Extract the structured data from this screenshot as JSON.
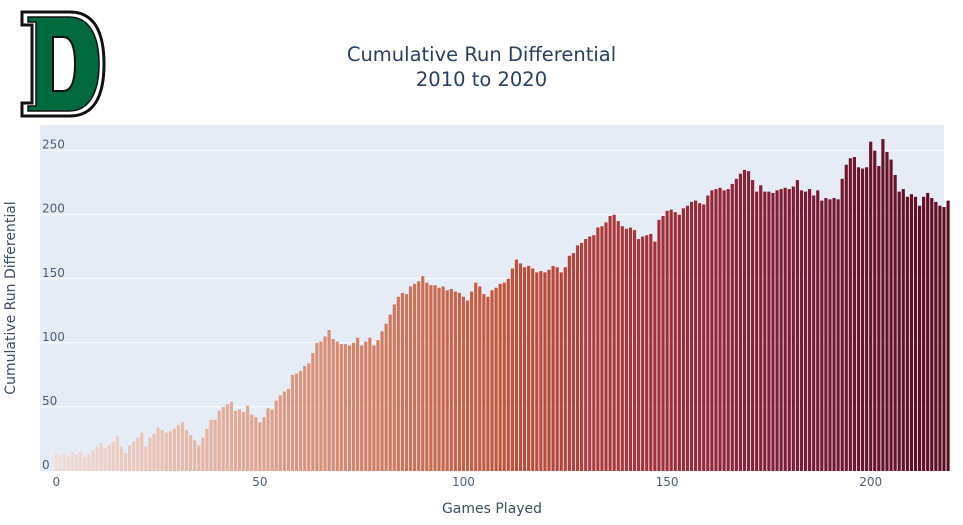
{
  "logo": {
    "letter": "D",
    "fill": "#00693e",
    "stroke": "#111111"
  },
  "chart_data": {
    "type": "bar",
    "title": "Cumulative Run Differential",
    "subtitle": "2010 to 2020",
    "xlabel": "Games Played",
    "ylabel": "Cumulative Run Differential",
    "xlim": [
      -4,
      218
    ],
    "ylim": [
      0,
      270
    ],
    "xticks": [
      0,
      50,
      100,
      150,
      200
    ],
    "yticks": [
      0,
      50,
      100,
      150,
      200,
      250
    ],
    "grid": true,
    "legend": "none",
    "plot_bg": "#e5ecf6",
    "colorscale": [
      "#f2dcd4",
      "#e6b4a3",
      "#d68468",
      "#c25339",
      "#a5303a",
      "#7d1a34",
      "#5c0d22"
    ],
    "x_start": 0,
    "values": [
      14,
      12,
      13,
      11,
      15,
      13,
      15,
      11,
      13,
      16,
      19,
      22,
      18,
      20,
      23,
      27,
      19,
      14,
      20,
      23,
      26,
      30,
      19,
      26,
      29,
      34,
      32,
      30,
      31,
      33,
      36,
      38,
      32,
      28,
      24,
      20,
      26,
      33,
      40,
      40,
      47,
      50,
      52,
      54,
      47,
      48,
      46,
      51,
      44,
      42,
      38,
      42,
      49,
      48,
      55,
      59,
      62,
      64,
      75,
      76,
      78,
      82,
      84,
      92,
      100,
      101,
      105,
      110,
      103,
      101,
      99,
      99,
      98,
      100,
      104,
      98,
      101,
      104,
      98,
      102,
      109,
      115,
      122,
      130,
      136,
      139,
      138,
      144,
      146,
      148,
      152,
      147,
      145,
      145,
      143,
      144,
      141,
      142,
      140,
      139,
      136,
      133,
      140,
      147,
      144,
      138,
      136,
      141,
      143,
      146,
      147,
      150,
      158,
      165,
      162,
      159,
      160,
      158,
      155,
      156,
      155,
      157,
      160,
      159,
      155,
      159,
      168,
      170,
      176,
      178,
      181,
      183,
      184,
      190,
      191,
      194,
      199,
      200,
      195,
      191,
      189,
      190,
      188,
      181,
      183,
      184,
      185,
      179,
      196,
      199,
      203,
      204,
      202,
      200,
      205,
      207,
      210,
      211,
      209,
      208,
      215,
      219,
      220,
      221,
      219,
      220,
      224,
      228,
      232,
      235,
      234,
      227,
      218,
      223,
      218,
      218,
      217,
      219,
      220,
      221,
      220,
      222,
      227,
      219,
      218,
      220,
      215,
      219,
      211,
      213,
      212,
      213,
      212,
      228,
      239,
      244,
      245,
      237,
      236,
      237,
      257,
      250,
      238,
      259,
      249,
      243,
      231,
      218,
      220,
      214,
      216,
      214,
      207,
      214,
      217,
      213,
      210,
      207,
      206,
      211
    ]
  }
}
